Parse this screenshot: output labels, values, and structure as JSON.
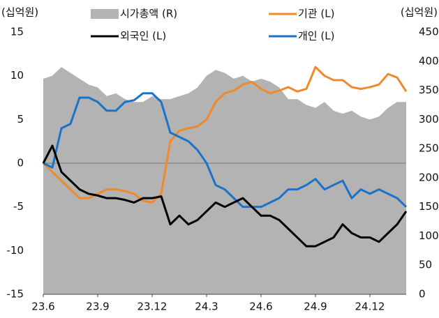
{
  "chart_data": {
    "type": "line",
    "y_label": "(십억원)",
    "y2_label": "(십억원)",
    "categories": [
      "23.6",
      null,
      null,
      null,
      null,
      null,
      "23.9",
      null,
      null,
      null,
      null,
      null,
      "23.12",
      null,
      null,
      null,
      null,
      null,
      "24.3",
      null,
      null,
      null,
      null,
      null,
      "24.6",
      null,
      null,
      null,
      null,
      null,
      "24.9",
      null,
      null,
      null,
      null,
      null,
      "24.12",
      null,
      null,
      null,
      null
    ],
    "ylim": [
      -15,
      15
    ],
    "yticks": [
      -15,
      -10,
      -5,
      0,
      5,
      10,
      15
    ],
    "y2lim": [
      0,
      450
    ],
    "y2ticks": [
      0,
      50,
      100,
      150,
      200,
      250,
      300,
      350,
      400,
      450
    ],
    "series": [
      {
        "name": "시가총액 (R)",
        "color": "#b3b3b3",
        "kind": "area",
        "axis": "y2",
        "values": [
          370,
          375,
          390,
          380,
          370,
          360,
          355,
          340,
          345,
          335,
          330,
          330,
          340,
          335,
          335,
          340,
          345,
          355,
          375,
          385,
          380,
          370,
          375,
          365,
          370,
          365,
          355,
          335,
          335,
          325,
          320,
          330,
          315,
          310,
          315,
          305,
          300,
          305,
          320,
          330,
          330
        ]
      },
      {
        "name": "기관 (L)",
        "color": "#f0892a",
        "kind": "line",
        "values": [
          0,
          -1,
          -2,
          -3,
          -4,
          -4,
          -3.5,
          -3,
          -3,
          -3.2,
          -3.5,
          -4.3,
          -4.5,
          -3.5,
          2.5,
          3.7,
          4,
          4.2,
          5,
          7,
          8,
          8.3,
          9,
          9.3,
          8.5,
          8,
          8.3,
          8.7,
          8.2,
          8.5,
          11,
          10,
          9.5,
          9.5,
          8.7,
          8.5,
          8.7,
          9,
          10.2,
          9.8,
          8.2
        ]
      },
      {
        "name": "외국인 (L)",
        "color": "#000000",
        "kind": "line",
        "values": [
          0,
          2,
          -1,
          -2,
          -3,
          -3.5,
          -3.7,
          -4,
          -4,
          -4.2,
          -4.5,
          -4,
          -4,
          -3.8,
          -7,
          -6,
          -7,
          -6.5,
          -5.5,
          -4.5,
          -5,
          -4.5,
          -4,
          -5,
          -6,
          -6,
          -6.5,
          -7.5,
          -8.5,
          -9.5,
          -9.5,
          -9,
          -8.5,
          -7,
          -8,
          -8.5,
          -8.5,
          -9,
          -8,
          -7,
          -5.5
        ]
      },
      {
        "name": "개인 (L)",
        "color": "#1a73c8",
        "kind": "line",
        "values": [
          0,
          -0.5,
          4,
          4.5,
          7.5,
          7.5,
          7,
          6,
          6,
          7,
          7.2,
          8,
          8,
          7,
          3.5,
          3,
          2.5,
          1.5,
          0,
          -2.5,
          -3,
          -4,
          -5,
          -5,
          -5,
          -4.5,
          -4,
          -3,
          -3,
          -2.5,
          -1.8,
          -3,
          -2.5,
          -2,
          -4,
          -3,
          -3.5,
          -3,
          -3.5,
          -4,
          -5
        ]
      }
    ]
  }
}
